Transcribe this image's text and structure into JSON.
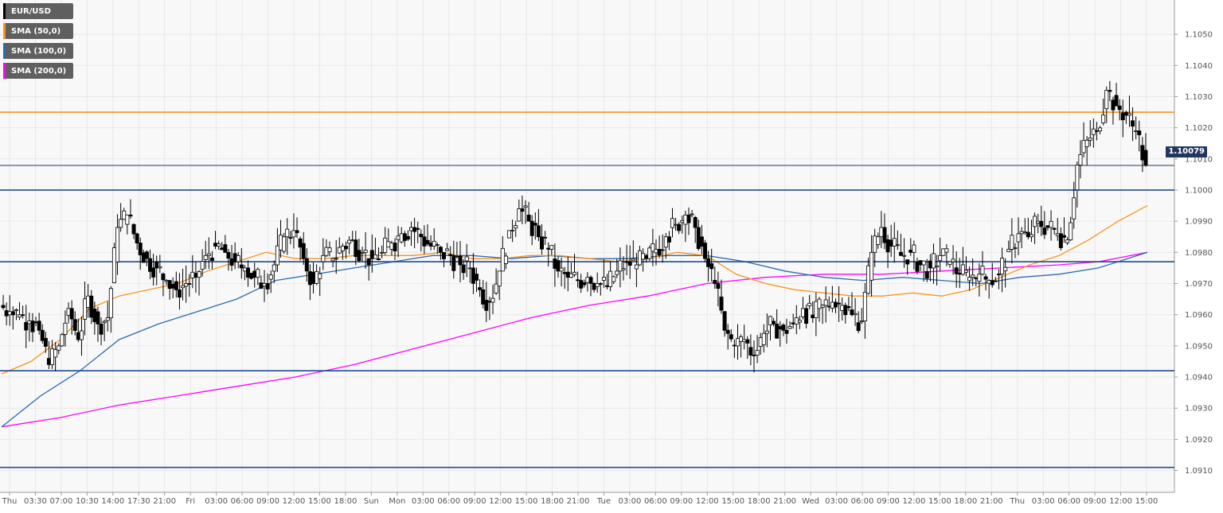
{
  "chart_data": {
    "type": "candlestick",
    "symbol": "EUR/USD",
    "last_price_label": "1.10079",
    "ylim": [
      1.0903,
      1.1061
    ],
    "y_ticks": [
      "1.0910",
      "1.0920",
      "1.0930",
      "1.0940",
      "1.0950",
      "1.0960",
      "1.0970",
      "1.0980",
      "1.0990",
      "1.1000",
      "1.1010",
      "1.1020",
      "1.1030",
      "1.1040",
      "1.1050"
    ],
    "x_labels": [
      "Thu",
      "03:30",
      "07:00",
      "10:30",
      "14:00",
      "17:30",
      "21:00",
      "Fri",
      "03:00",
      "06:00",
      "09:00",
      "12:00",
      "15:00",
      "18:00",
      "Sun",
      "Mon",
      "03:00",
      "06:00",
      "09:00",
      "12:00",
      "15:00",
      "18:00",
      "21:00",
      "Tue",
      "03:00",
      "06:00",
      "09:00",
      "12:00",
      "15:00",
      "18:00",
      "21:00",
      "Wed",
      "03:00",
      "06:00",
      "09:00",
      "12:00",
      "15:00",
      "18:00",
      "21:00",
      "Thu",
      "03:00",
      "06:00",
      "09:00",
      "12:00",
      "15:00"
    ],
    "legend": [
      {
        "label": "EUR/USD",
        "color": "#000000"
      },
      {
        "label": "SMA (50,0)",
        "color": "#f7941d"
      },
      {
        "label": "SMA (100,0)",
        "color": "#2b6cb0"
      },
      {
        "label": "SMA (200,0)",
        "color": "#ff00ff"
      }
    ],
    "horizontal_levels": [
      {
        "value": 1.1025,
        "color": "#f7941d"
      },
      {
        "value": 1.10079,
        "color": "#22365f",
        "width": 1
      },
      {
        "value": 1.1,
        "color": "#1f4b99"
      },
      {
        "value": 1.0977,
        "color": "#1f4b99"
      },
      {
        "value": 1.0942,
        "color": "#1f4b99"
      },
      {
        "value": 1.0911,
        "color": "#1f4b99"
      }
    ],
    "price_path": [
      [
        0,
        1.0963
      ],
      [
        1,
        1.0961
      ],
      [
        2,
        1.096
      ],
      [
        3,
        1.0958
      ],
      [
        4,
        1.0955
      ],
      [
        5,
        1.0944
      ],
      [
        6,
        1.095
      ],
      [
        7,
        1.0962
      ],
      [
        8,
        1.0952
      ],
      [
        9,
        1.0966
      ],
      [
        10,
        1.0957
      ],
      [
        11,
        1.0959
      ],
      [
        12,
        1.0988
      ],
      [
        13,
        1.0992
      ],
      [
        14,
        1.0983
      ],
      [
        15,
        1.0978
      ],
      [
        16,
        1.0975
      ],
      [
        17,
        1.0971
      ],
      [
        18,
        1.0968
      ],
      [
        19,
        1.097
      ],
      [
        20,
        1.0972
      ],
      [
        21,
        1.0979
      ],
      [
        22,
        1.0982
      ],
      [
        23,
        1.098
      ],
      [
        24,
        1.0977
      ],
      [
        25,
        1.0975
      ],
      [
        26,
        1.0972
      ],
      [
        27,
        1.097
      ],
      [
        28,
        1.0976
      ],
      [
        29,
        1.0985
      ],
      [
        30,
        1.0987
      ],
      [
        31,
        1.0978
      ],
      [
        32,
        1.097
      ],
      [
        33,
        1.0979
      ],
      [
        34,
        1.0978
      ],
      [
        35,
        1.0982
      ],
      [
        36,
        1.0984
      ],
      [
        37,
        1.098
      ],
      [
        38,
        1.0978
      ],
      [
        39,
        1.098
      ],
      [
        40,
        1.0983
      ],
      [
        41,
        1.0986
      ],
      [
        42,
        1.0988
      ],
      [
        43,
        1.0985
      ],
      [
        44,
        1.0982
      ],
      [
        45,
        1.098
      ],
      [
        46,
        1.0979
      ],
      [
        47,
        1.0976
      ],
      [
        48,
        1.0975
      ],
      [
        49,
        1.0968
      ],
      [
        50,
        1.0964
      ],
      [
        51,
        1.0974
      ],
      [
        52,
        1.0987
      ],
      [
        53,
        1.0994
      ],
      [
        54,
        1.099
      ],
      [
        55,
        1.0985
      ],
      [
        56,
        1.0981
      ],
      [
        57,
        1.0974
      ],
      [
        58,
        1.0972
      ],
      [
        59,
        1.0971
      ],
      [
        60,
        1.0972
      ],
      [
        61,
        1.097
      ],
      [
        62,
        1.0969
      ],
      [
        63,
        1.0974
      ],
      [
        64,
        1.0977
      ],
      [
        65,
        1.0976
      ],
      [
        66,
        1.0978
      ],
      [
        67,
        1.0981
      ],
      [
        68,
        1.0985
      ],
      [
        69,
        1.0989
      ],
      [
        70,
        1.0992
      ],
      [
        71,
        1.0988
      ],
      [
        72,
        1.0978
      ],
      [
        73,
        1.097
      ],
      [
        74,
        1.0955
      ],
      [
        75,
        1.095
      ],
      [
        76,
        1.0952
      ],
      [
        77,
        1.0947
      ],
      [
        78,
        1.0954
      ],
      [
        79,
        1.0957
      ],
      [
        80,
        1.0955
      ],
      [
        81,
        1.0957
      ],
      [
        82,
        1.0962
      ],
      [
        83,
        1.0959
      ],
      [
        84,
        1.0963
      ],
      [
        85,
        1.0964
      ],
      [
        86,
        1.0963
      ],
      [
        87,
        1.096
      ],
      [
        88,
        1.0958
      ],
      [
        89,
        1.098
      ],
      [
        90,
        1.0988
      ],
      [
        91,
        1.0982
      ],
      [
        92,
        1.0979
      ],
      [
        93,
        1.098
      ],
      [
        94,
        1.0976
      ],
      [
        95,
        1.0975
      ],
      [
        96,
        1.0979
      ],
      [
        97,
        1.0977
      ],
      [
        98,
        1.0973
      ],
      [
        99,
        1.0972
      ],
      [
        100,
        1.0973
      ],
      [
        101,
        1.0971
      ],
      [
        102,
        1.0973
      ],
      [
        103,
        1.0981
      ],
      [
        104,
        1.0986
      ],
      [
        105,
        1.0985
      ],
      [
        106,
        1.099
      ],
      [
        107,
        1.0988
      ],
      [
        108,
        1.0986
      ],
      [
        109,
        1.0984
      ],
      [
        110,
        1.1008
      ],
      [
        111,
        1.1016
      ],
      [
        112,
        1.1019
      ],
      [
        113,
        1.1032
      ],
      [
        114,
        1.1027
      ],
      [
        115,
        1.1024
      ],
      [
        116,
        1.1019
      ],
      [
        117,
        1.1008
      ]
    ],
    "sma50": [
      [
        0,
        1.0941
      ],
      [
        3,
        1.0945
      ],
      [
        6,
        1.0952
      ],
      [
        9,
        1.0962
      ],
      [
        12,
        1.0966
      ],
      [
        15,
        1.0968
      ],
      [
        18,
        1.097
      ],
      [
        21,
        1.0974
      ],
      [
        24,
        1.0977
      ],
      [
        27,
        1.098
      ],
      [
        30,
        1.0978
      ],
      [
        33,
        1.0978
      ],
      [
        36,
        1.0979
      ],
      [
        39,
        1.0979
      ],
      [
        42,
        1.0979
      ],
      [
        45,
        1.098
      ],
      [
        48,
        1.0978
      ],
      [
        51,
        1.0978
      ],
      [
        54,
        1.0979
      ],
      [
        57,
        1.0979
      ],
      [
        60,
        1.0978
      ],
      [
        63,
        1.0977
      ],
      [
        66,
        1.0978
      ],
      [
        69,
        1.098
      ],
      [
        72,
        1.0979
      ],
      [
        75,
        1.0973
      ],
      [
        78,
        1.097
      ],
      [
        81,
        1.0968
      ],
      [
        84,
        1.0967
      ],
      [
        87,
        1.0966
      ],
      [
        90,
        1.0966
      ],
      [
        93,
        1.0967
      ],
      [
        96,
        1.0966
      ],
      [
        99,
        1.0968
      ],
      [
        102,
        1.0972
      ],
      [
        105,
        1.0976
      ],
      [
        108,
        1.0979
      ],
      [
        111,
        1.0984
      ],
      [
        114,
        1.099
      ],
      [
        117,
        1.0995
      ]
    ],
    "sma100": [
      [
        0,
        1.0924
      ],
      [
        4,
        1.0934
      ],
      [
        8,
        1.0942
      ],
      [
        12,
        1.0952
      ],
      [
        16,
        1.0957
      ],
      [
        20,
        1.0961
      ],
      [
        24,
        1.0965
      ],
      [
        28,
        1.0971
      ],
      [
        32,
        1.0973
      ],
      [
        36,
        1.0975
      ],
      [
        40,
        1.0977
      ],
      [
        44,
        1.0979
      ],
      [
        48,
        1.0979
      ],
      [
        52,
        1.0978
      ],
      [
        56,
        1.0979
      ],
      [
        60,
        1.0978
      ],
      [
        64,
        1.0978
      ],
      [
        68,
        1.0979
      ],
      [
        72,
        1.0979
      ],
      [
        76,
        1.0977
      ],
      [
        80,
        1.0974
      ],
      [
        84,
        1.0972
      ],
      [
        88,
        1.0971
      ],
      [
        92,
        1.0972
      ],
      [
        96,
        1.0971
      ],
      [
        100,
        1.097
      ],
      [
        104,
        1.0972
      ],
      [
        108,
        1.0973
      ],
      [
        112,
        1.0975
      ],
      [
        117,
        1.098
      ]
    ],
    "sma200": [
      [
        0,
        1.0924
      ],
      [
        6,
        1.0927
      ],
      [
        12,
        1.0931
      ],
      [
        18,
        1.0934
      ],
      [
        24,
        1.0937
      ],
      [
        30,
        1.094
      ],
      [
        36,
        1.0944
      ],
      [
        42,
        1.0949
      ],
      [
        48,
        1.0954
      ],
      [
        54,
        1.0959
      ],
      [
        60,
        1.0963
      ],
      [
        66,
        1.0966
      ],
      [
        72,
        1.097
      ],
      [
        78,
        1.0972
      ],
      [
        84,
        1.0973
      ],
      [
        90,
        1.0973
      ],
      [
        96,
        1.0974
      ],
      [
        102,
        1.0975
      ],
      [
        108,
        1.0976
      ],
      [
        112,
        1.0977
      ],
      [
        117,
        1.098
      ]
    ]
  }
}
